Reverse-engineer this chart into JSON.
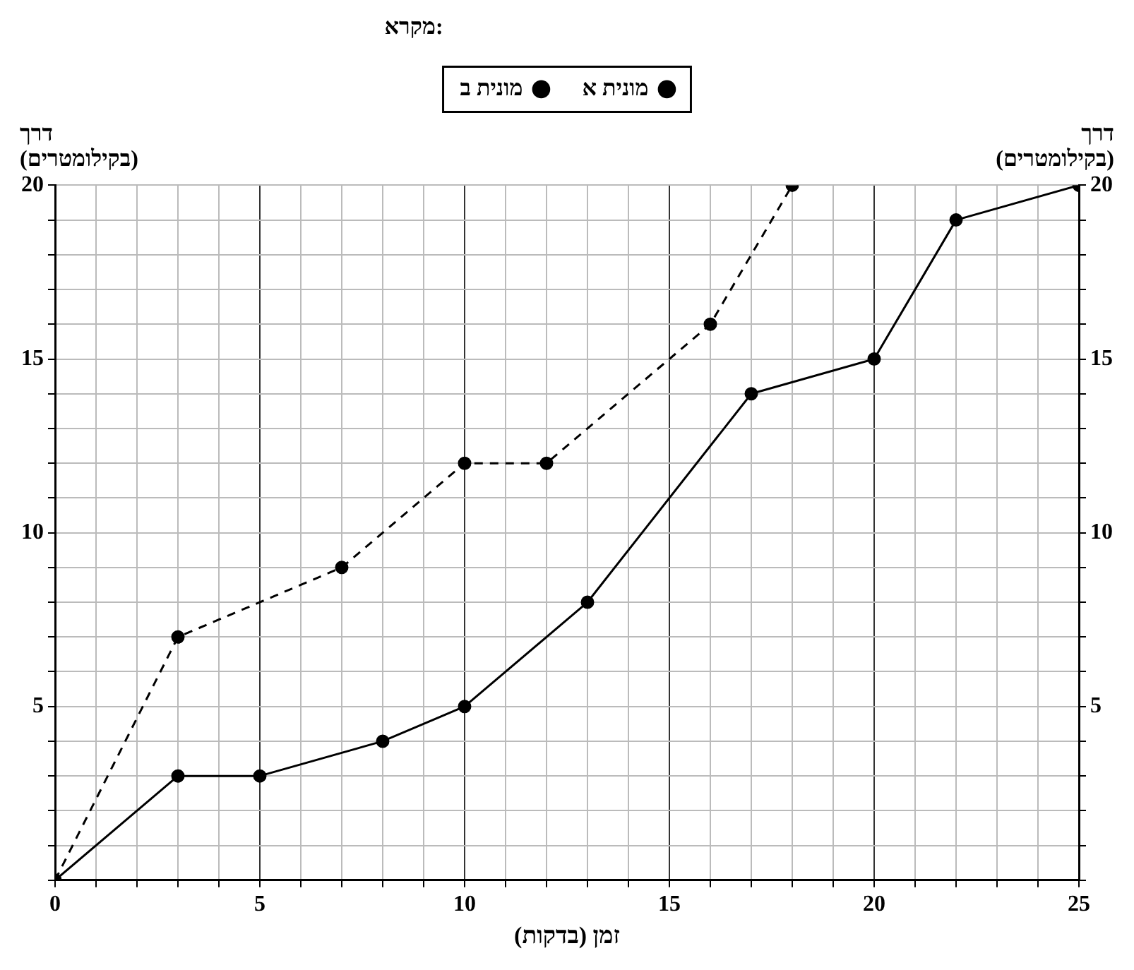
{
  "chart_data": {
    "type": "line",
    "legend_title": "מקרא:",
    "xlabel": "זמן (בדקות)",
    "ylabel": "דרך (בקילומטרים)",
    "y2label": "דרך (בקילומטרים)",
    "xlim": [
      0,
      25
    ],
    "ylim": [
      0,
      20
    ],
    "y2lim": [
      0,
      20
    ],
    "xticks": [
      0,
      {
        "value": 1,
        "label": null
      },
      {
        "value": 2,
        "label": null
      },
      {
        "value": 3,
        "label": null
      },
      {
        "value": 4,
        "label": null
      },
      5,
      {
        "value": 6,
        "label": null
      },
      {
        "value": 7,
        "label": null
      },
      {
        "value": 8,
        "label": null
      },
      {
        "value": 9,
        "label": null
      },
      10,
      {
        "value": 11,
        "label": null
      },
      {
        "value": 12,
        "label": null
      },
      {
        "value": 13,
        "label": null
      },
      {
        "value": 14,
        "label": null
      },
      15,
      {
        "value": 16,
        "label": null
      },
      {
        "value": 17,
        "label": null
      },
      {
        "value": 18,
        "label": null
      },
      {
        "value": 19,
        "label": null
      },
      20,
      {
        "value": 21,
        "label": null
      },
      {
        "value": 22,
        "label": null
      },
      {
        "value": 23,
        "label": null
      },
      {
        "value": 24,
        "label": null
      },
      25
    ],
    "yticks": [
      {
        "value": 0,
        "label": null
      },
      {
        "value": 1,
        "label": null
      },
      {
        "value": 2,
        "label": null
      },
      {
        "value": 3,
        "label": null
      },
      {
        "value": 4,
        "label": null
      },
      5,
      {
        "value": 6,
        "label": null
      },
      {
        "value": 7,
        "label": null
      },
      {
        "value": 8,
        "label": null
      },
      {
        "value": 9,
        "label": null
      },
      10,
      {
        "value": 11,
        "label": null
      },
      {
        "value": 12,
        "label": null
      },
      {
        "value": 13,
        "label": null
      },
      {
        "value": 14,
        "label": null
      },
      15,
      {
        "value": 16,
        "label": null
      },
      {
        "value": 17,
        "label": null
      },
      {
        "value": 18,
        "label": null
      },
      {
        "value": 19,
        "label": null
      },
      20
    ],
    "y2ticks": [
      {
        "value": 0,
        "label": null
      },
      {
        "value": 1,
        "label": null
      },
      {
        "value": 2,
        "label": null
      },
      {
        "value": 3,
        "label": null
      },
      {
        "value": 4,
        "label": null
      },
      5,
      {
        "value": 6,
        "label": null
      },
      {
        "value": 7,
        "label": null
      },
      {
        "value": 8,
        "label": null
      },
      {
        "value": 9,
        "label": null
      },
      10,
      {
        "value": 11,
        "label": null
      },
      {
        "value": 12,
        "label": null
      },
      {
        "value": 13,
        "label": null
      },
      {
        "value": 14,
        "label": null
      },
      15,
      {
        "value": 16,
        "label": null
      },
      {
        "value": 17,
        "label": null
      },
      {
        "value": 18,
        "label": null
      },
      {
        "value": 19,
        "label": null
      },
      20
    ],
    "grid": true,
    "legend": "top",
    "marker": "circle",
    "series": [
      {
        "name": "מונית א",
        "color": "#000000",
        "line_style": "solid",
        "x": [
          0,
          3,
          5,
          8,
          10,
          13,
          17,
          20,
          22,
          25
        ],
        "values": [
          0,
          3,
          3,
          4,
          5,
          8,
          14,
          15,
          19,
          20
        ]
      },
      {
        "name": "מונית ב",
        "color": "#000000",
        "line_style": "dashed",
        "x": [
          0,
          3,
          7,
          10,
          12,
          16,
          18
        ],
        "values": [
          0,
          7,
          9,
          12,
          12,
          16,
          20
        ]
      }
    ]
  }
}
